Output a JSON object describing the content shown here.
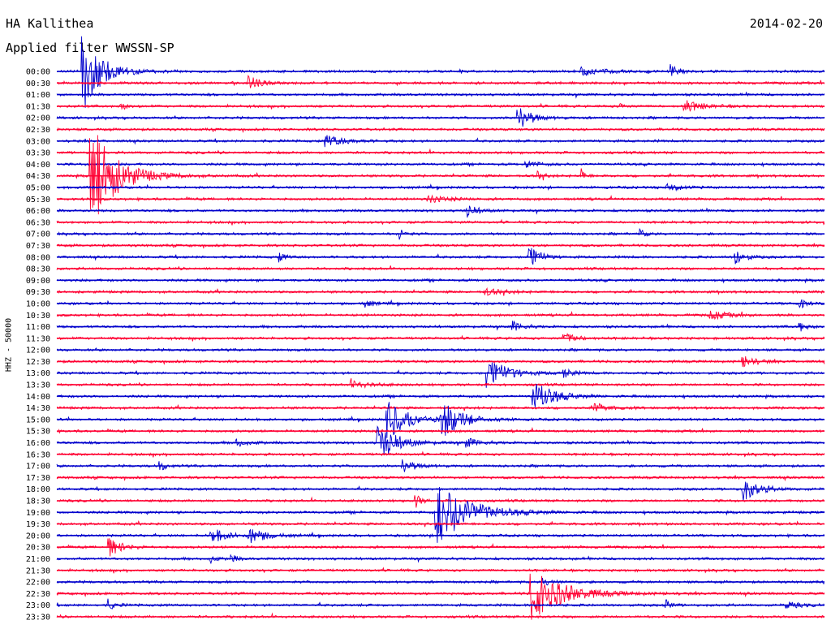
{
  "header": {
    "station": "HA Kallithea",
    "date": "2014-02-20",
    "filter": "Applied filter WWSSN-SP"
  },
  "chart_data": {
    "type": "line",
    "ylabel": "HHZ - 50000",
    "row_labels": [
      "00:00",
      "00:30",
      "01:00",
      "01:30",
      "02:00",
      "02:30",
      "03:00",
      "03:30",
      "04:00",
      "04:30",
      "05:00",
      "05:30",
      "06:00",
      "06:30",
      "07:00",
      "07:30",
      "08:00",
      "08:30",
      "09:00",
      "09:30",
      "10:00",
      "10:30",
      "11:00",
      "11:30",
      "12:00",
      "12:30",
      "13:00",
      "13:30",
      "14:00",
      "14:30",
      "15:00",
      "15:30",
      "16:00",
      "16:30",
      "17:00",
      "17:30",
      "18:00",
      "18:30",
      "19:00",
      "19:30",
      "20:00",
      "20:30",
      "21:00",
      "21:30",
      "22:00",
      "22:30",
      "23:00",
      "23:30"
    ],
    "series_colors": [
      "#0000cc",
      "#ff0033"
    ],
    "minutes_per_row": 30,
    "events": [
      {
        "row": 0,
        "minute": 1.0,
        "amp": 6.0,
        "dur": 1.5
      },
      {
        "row": 0,
        "minute": 20.5,
        "amp": 0.6,
        "dur": 1.6
      },
      {
        "row": 0,
        "minute": 24.0,
        "amp": 0.9,
        "dur": 0.6
      },
      {
        "row": 1,
        "minute": 7.5,
        "amp": 1.2,
        "dur": 0.8
      },
      {
        "row": 3,
        "minute": 2.5,
        "amp": 0.5,
        "dur": 0.5
      },
      {
        "row": 3,
        "minute": 22.0,
        "amp": 0.4,
        "dur": 0.4
      },
      {
        "row": 3,
        "minute": 24.5,
        "amp": 0.9,
        "dur": 1.4
      },
      {
        "row": 4,
        "minute": 18.0,
        "amp": 2.0,
        "dur": 1.0
      },
      {
        "row": 6,
        "minute": 10.5,
        "amp": 0.9,
        "dur": 1.5
      },
      {
        "row": 9,
        "minute": 1.3,
        "amp": 8.0,
        "dur": 2.0
      },
      {
        "row": 9,
        "minute": 18.8,
        "amp": 0.6,
        "dur": 0.5
      },
      {
        "row": 9,
        "minute": 20.5,
        "amp": 1.0,
        "dur": 0.3
      },
      {
        "row": 8,
        "minute": 18.3,
        "amp": 0.5,
        "dur": 1.0
      },
      {
        "row": 10,
        "minute": 23.8,
        "amp": 0.6,
        "dur": 1.0
      },
      {
        "row": 11,
        "minute": 14.5,
        "amp": 0.5,
        "dur": 1.5
      },
      {
        "row": 12,
        "minute": 16.0,
        "amp": 1.0,
        "dur": 0.8
      },
      {
        "row": 14,
        "minute": 13.4,
        "amp": 0.8,
        "dur": 0.4
      },
      {
        "row": 14,
        "minute": 22.8,
        "amp": 0.6,
        "dur": 0.5
      },
      {
        "row": 16,
        "minute": 8.7,
        "amp": 0.6,
        "dur": 0.5
      },
      {
        "row": 16,
        "minute": 18.4,
        "amp": 2.3,
        "dur": 0.8
      },
      {
        "row": 16,
        "minute": 26.5,
        "amp": 1.3,
        "dur": 0.7
      },
      {
        "row": 19,
        "minute": 16.7,
        "amp": 0.5,
        "dur": 1.5
      },
      {
        "row": 20,
        "minute": 12.0,
        "amp": 0.5,
        "dur": 0.8
      },
      {
        "row": 20,
        "minute": 29.0,
        "amp": 0.9,
        "dur": 0.5
      },
      {
        "row": 21,
        "minute": 25.5,
        "amp": 0.6,
        "dur": 1.5
      },
      {
        "row": 22,
        "minute": 17.8,
        "amp": 0.8,
        "dur": 0.8
      },
      {
        "row": 22,
        "minute": 29.0,
        "amp": 0.8,
        "dur": 0.5
      },
      {
        "row": 23,
        "minute": 19.8,
        "amp": 0.8,
        "dur": 1.0
      },
      {
        "row": 25,
        "minute": 26.8,
        "amp": 0.8,
        "dur": 1.0
      },
      {
        "row": 26,
        "minute": 16.8,
        "amp": 2.5,
        "dur": 1.5
      },
      {
        "row": 26,
        "minute": 19.8,
        "amp": 0.8,
        "dur": 0.6
      },
      {
        "row": 27,
        "minute": 11.5,
        "amp": 0.5,
        "dur": 1.5
      },
      {
        "row": 28,
        "minute": 18.6,
        "amp": 2.5,
        "dur": 1.5
      },
      {
        "row": 29,
        "minute": 21.0,
        "amp": 0.8,
        "dur": 1.0
      },
      {
        "row": 30,
        "minute": 12.9,
        "amp": 3.0,
        "dur": 1.5
      },
      {
        "row": 30,
        "minute": 15.0,
        "amp": 3.0,
        "dur": 1.5
      },
      {
        "row": 32,
        "minute": 12.5,
        "amp": 3.0,
        "dur": 1.5
      },
      {
        "row": 32,
        "minute": 7.0,
        "amp": 0.5,
        "dur": 1.0
      },
      {
        "row": 32,
        "minute": 16.0,
        "amp": 0.7,
        "dur": 1.0
      },
      {
        "row": 34,
        "minute": 4.0,
        "amp": 0.8,
        "dur": 0.5
      },
      {
        "row": 34,
        "minute": 13.5,
        "amp": 1.0,
        "dur": 1.0
      },
      {
        "row": 36,
        "minute": 26.8,
        "amp": 1.8,
        "dur": 1.2
      },
      {
        "row": 37,
        "minute": 14.0,
        "amp": 1.2,
        "dur": 0.4
      },
      {
        "row": 38,
        "minute": 14.8,
        "amp": 5.0,
        "dur": 2.5
      },
      {
        "row": 40,
        "minute": 6.0,
        "amp": 1.2,
        "dur": 1.2
      },
      {
        "row": 40,
        "minute": 7.5,
        "amp": 1.2,
        "dur": 1.2
      },
      {
        "row": 41,
        "minute": 2.0,
        "amp": 1.5,
        "dur": 1.0
      },
      {
        "row": 42,
        "minute": 6.0,
        "amp": 0.6,
        "dur": 0.4
      },
      {
        "row": 42,
        "minute": 6.8,
        "amp": 0.8,
        "dur": 0.4
      },
      {
        "row": 44,
        "minute": 19.0,
        "amp": 0.5,
        "dur": 0.8
      },
      {
        "row": 45,
        "minute": 18.5,
        "amp": 4.0,
        "dur": 2.5
      },
      {
        "row": 46,
        "minute": 2.0,
        "amp": 0.8,
        "dur": 0.5
      },
      {
        "row": 46,
        "minute": 23.8,
        "amp": 0.8,
        "dur": 0.4
      },
      {
        "row": 46,
        "minute": 28.5,
        "amp": 0.5,
        "dur": 1.0
      }
    ]
  }
}
